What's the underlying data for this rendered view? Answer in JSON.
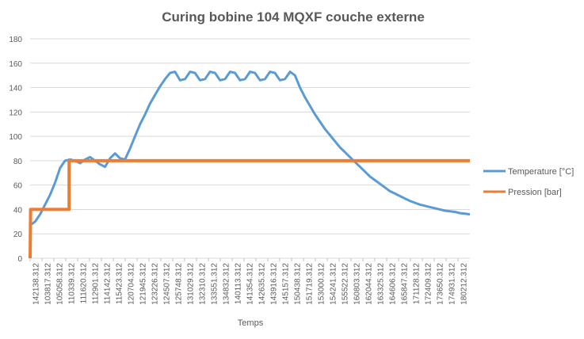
{
  "chart_data": {
    "type": "line",
    "title": "Curing bobine 104 MQXF couche externe",
    "xlabel": "Temps",
    "ylabel": "",
    "ylim": [
      0,
      180
    ],
    "yticks": [
      0,
      20,
      40,
      60,
      80,
      100,
      120,
      140,
      160,
      180
    ],
    "grid": "horizontal",
    "legend": "right",
    "x_tick_labels": [
      "142138.312",
      "103817.312",
      "105058.312",
      "110339.312",
      "111620.312",
      "112901.312",
      "114142.312",
      "115423.312",
      "120704.312",
      "121945.312",
      "123226.312",
      "124507.312",
      "125748.312",
      "131029.312",
      "132310.312",
      "133551.312",
      "134832.312",
      "140113.312",
      "141354.312",
      "142635.312",
      "143916.312",
      "145157.312",
      "150438.312",
      "151719.312",
      "153000.312",
      "154241.312",
      "155522.312",
      "160803.312",
      "162044.312",
      "163325.312",
      "164606.312",
      "165847.312",
      "171128.312",
      "172409.312",
      "173650.312",
      "174931.312",
      "180212.312"
    ],
    "series": [
      {
        "name": "Temperature [°C]",
        "color": "#5b9bd5",
        "points": [
          [
            0,
            27
          ],
          [
            0.5,
            30
          ],
          [
            1,
            36
          ],
          [
            1.5,
            44
          ],
          [
            2,
            52
          ],
          [
            2.5,
            62
          ],
          [
            3,
            74
          ],
          [
            3.5,
            80
          ],
          [
            4,
            81
          ],
          [
            4.5,
            80
          ],
          [
            5,
            78
          ],
          [
            5.5,
            81
          ],
          [
            6,
            83
          ],
          [
            6.5,
            80
          ],
          [
            7,
            77
          ],
          [
            7.5,
            75
          ],
          [
            8,
            82
          ],
          [
            8.5,
            86
          ],
          [
            9,
            82
          ],
          [
            9.5,
            81
          ],
          [
            10,
            90
          ],
          [
            10.5,
            100
          ],
          [
            11,
            110
          ],
          [
            11.5,
            118
          ],
          [
            12,
            127
          ],
          [
            12.5,
            134
          ],
          [
            13,
            141
          ],
          [
            13.5,
            147
          ],
          [
            14,
            152
          ],
          [
            14.5,
            153
          ],
          [
            15,
            146
          ],
          [
            15.5,
            147
          ],
          [
            16,
            153
          ],
          [
            16.5,
            152
          ],
          [
            17,
            146
          ],
          [
            17.5,
            147
          ],
          [
            18,
            153
          ],
          [
            18.5,
            152
          ],
          [
            19,
            146
          ],
          [
            19.5,
            147
          ],
          [
            20,
            153
          ],
          [
            20.5,
            152
          ],
          [
            21,
            146
          ],
          [
            21.5,
            147
          ],
          [
            22,
            153
          ],
          [
            22.5,
            152
          ],
          [
            23,
            146
          ],
          [
            23.5,
            147
          ],
          [
            24,
            153
          ],
          [
            24.5,
            152
          ],
          [
            25,
            146
          ],
          [
            25.5,
            147
          ],
          [
            26,
            153
          ],
          [
            26.5,
            150
          ],
          [
            27,
            140
          ],
          [
            27.5,
            132
          ],
          [
            28,
            125
          ],
          [
            28.5,
            118
          ],
          [
            29,
            112
          ],
          [
            29.5,
            106
          ],
          [
            30,
            101
          ],
          [
            30.5,
            96
          ],
          [
            31,
            91
          ],
          [
            31.5,
            87
          ],
          [
            32,
            83
          ],
          [
            32.5,
            79
          ],
          [
            33,
            75
          ],
          [
            33.5,
            71
          ],
          [
            34,
            67
          ],
          [
            34.5,
            64
          ],
          [
            35,
            61
          ],
          [
            35.5,
            58
          ],
          [
            36,
            55
          ],
          [
            36.5,
            53
          ],
          [
            37,
            51
          ],
          [
            37.5,
            49
          ],
          [
            38,
            47
          ],
          [
            38.5,
            45.5
          ],
          [
            39,
            44
          ],
          [
            39.5,
            43
          ],
          [
            40,
            42
          ],
          [
            40.5,
            41
          ],
          [
            41,
            40
          ],
          [
            41.5,
            39
          ],
          [
            42,
            38.5
          ],
          [
            42.5,
            38
          ],
          [
            43,
            37
          ],
          [
            43.5,
            36.5
          ],
          [
            44,
            36
          ]
        ]
      },
      {
        "name": "Pression [bar]",
        "color": "#ed7d31",
        "points": [
          [
            0,
            0
          ],
          [
            0.05,
            40
          ],
          [
            3.9,
            40
          ],
          [
            3.9,
            80
          ],
          [
            44,
            80
          ]
        ]
      }
    ]
  }
}
